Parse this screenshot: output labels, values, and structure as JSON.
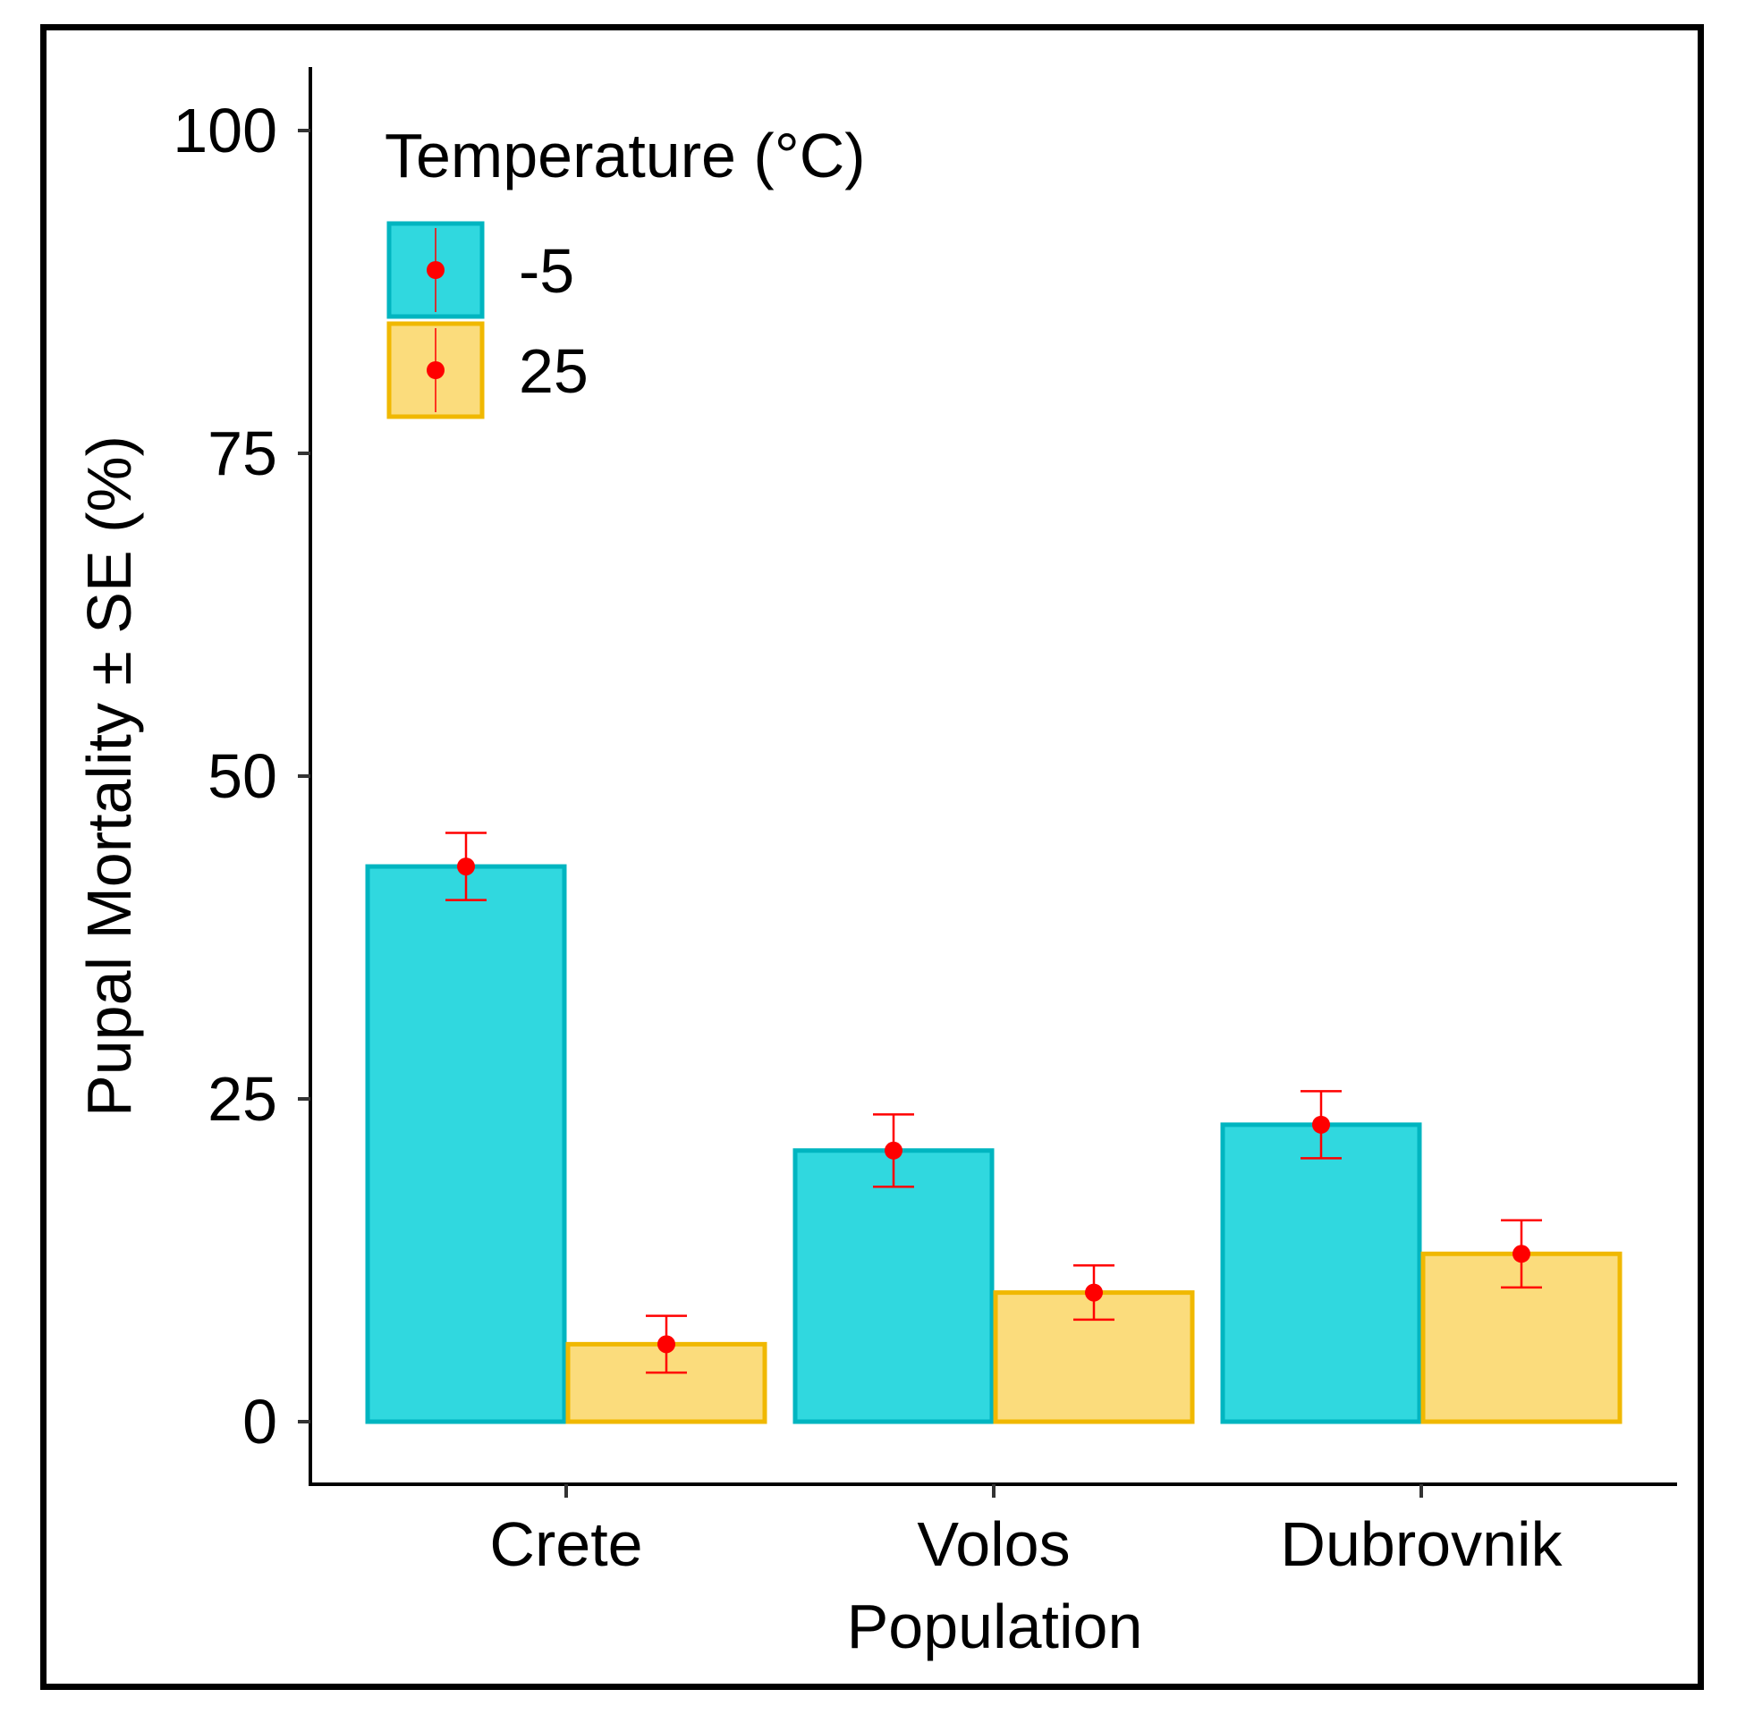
{
  "chart_data": {
    "type": "bar",
    "title": "",
    "xlabel": "Population",
    "ylabel": "Pupal Mortality ± SE (%)",
    "categories": [
      "Crete",
      "Volos",
      "Dubrovnik"
    ],
    "ylim": [
      -5,
      105
    ],
    "yticks": [
      0,
      25,
      50,
      75,
      100
    ],
    "legend": {
      "title": "Temperature (°C)",
      "position": "top-left",
      "labels": [
        "-5",
        "25"
      ]
    },
    "series": [
      {
        "name": "-5",
        "fill": "#30d8df",
        "stroke": "#00b5c0",
        "values": [
          43,
          21,
          23
        ],
        "se": [
          2.6,
          2.8,
          2.6
        ]
      },
      {
        "name": "25",
        "fill": "#fbdc7c",
        "stroke": "#f0b800",
        "values": [
          6,
          10,
          13
        ],
        "se": [
          2.2,
          2.1,
          2.6
        ]
      }
    ],
    "errorbar_color": "#ff0000",
    "point_color": "#ff0000",
    "grid": false
  }
}
